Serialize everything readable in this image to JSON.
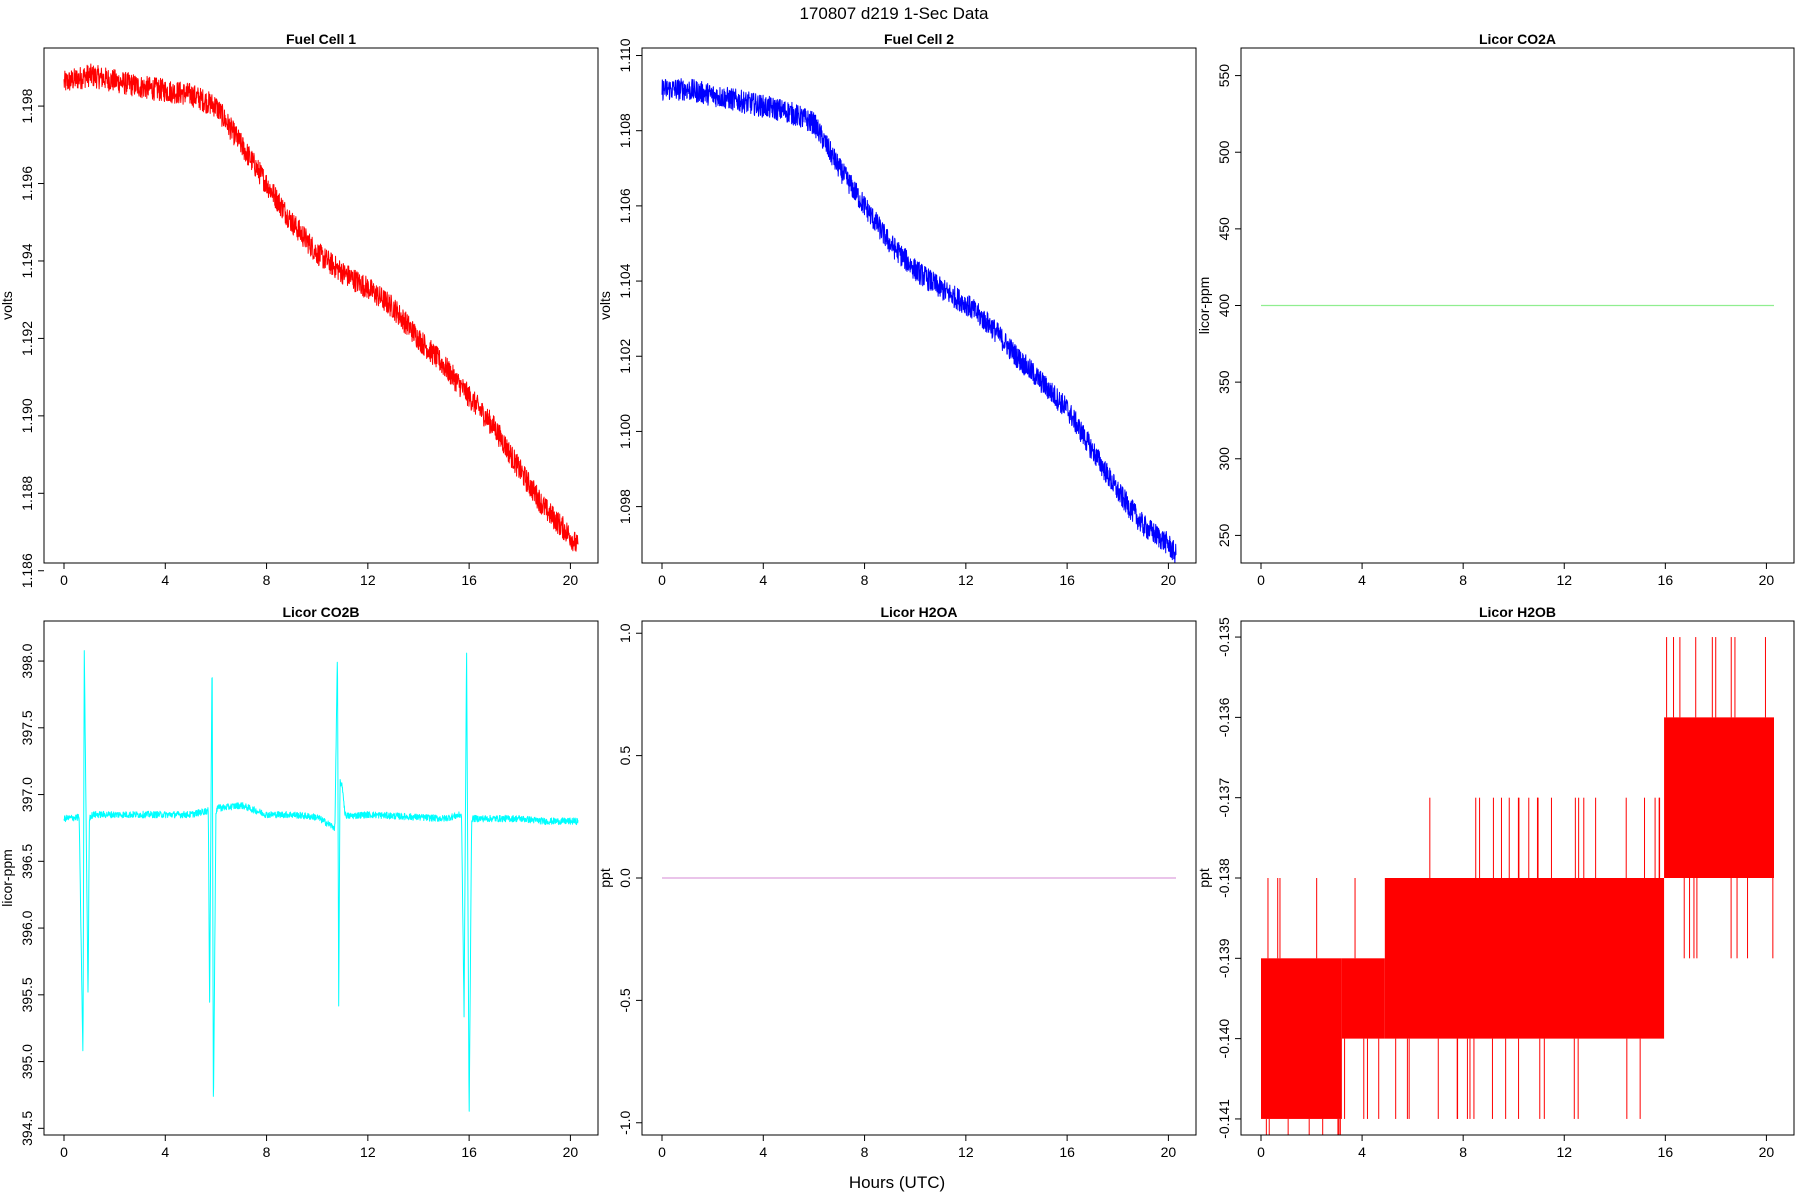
{
  "figure": {
    "title": "170807   d219   1-Sec Data",
    "xlabel": "Hours (UTC)"
  },
  "chart_data": [
    {
      "type": "line",
      "title": "Fuel Cell 1",
      "ylabel": "volts",
      "color": "#ff0000",
      "xlim": [
        0,
        20.3
      ],
      "ylim": [
        1.1862,
        1.1995
      ],
      "xticks": [
        "0",
        "4",
        "8",
        "12",
        "16",
        "20"
      ],
      "yticks": [
        "1.186",
        "1.188",
        "1.190",
        "1.192",
        "1.194",
        "1.196",
        "1.198"
      ],
      "noise": 0.0003,
      "series": [
        {
          "x": [
            0,
            1,
            3,
            5,
            6,
            7,
            8,
            9,
            10,
            11,
            12,
            13,
            14,
            15,
            16,
            17,
            18,
            19,
            20,
            20.3
          ],
          "y": [
            1.1986,
            1.1988,
            1.1985,
            1.1983,
            1.198,
            1.197,
            1.196,
            1.195,
            1.1942,
            1.1937,
            1.1933,
            1.1928,
            1.192,
            1.1913,
            1.1905,
            1.1897,
            1.1886,
            1.1876,
            1.1869,
            1.1866
          ]
        }
      ]
    },
    {
      "type": "line",
      "title": "Fuel Cell 2",
      "ylabel": "volts",
      "color": "#0000ff",
      "xlim": [
        0,
        20.3
      ],
      "ylim": [
        1.0965,
        1.1102
      ],
      "xticks": [
        "0",
        "4",
        "8",
        "12",
        "16",
        "20"
      ],
      "yticks": [
        "1.098",
        "1.100",
        "1.102",
        "1.104",
        "1.106",
        "1.108",
        "1.110"
      ],
      "noise": 0.0003,
      "series": [
        {
          "x": [
            0,
            1,
            3,
            5,
            6,
            7,
            8,
            9,
            10,
            11,
            12,
            13,
            14,
            15,
            16,
            17,
            18,
            19,
            20,
            20.3
          ],
          "y": [
            1.1091,
            1.1091,
            1.1088,
            1.1085,
            1.1082,
            1.107,
            1.106,
            1.105,
            1.1043,
            1.1038,
            1.1034,
            1.1028,
            1.102,
            1.1013,
            1.1006,
            1.0995,
            1.0984,
            1.0975,
            1.097,
            1.0967
          ]
        }
      ]
    },
    {
      "type": "line",
      "title": "Licor CO2A",
      "ylabel": "licor-ppm",
      "color": "#90ee90",
      "xlim": [
        0,
        20.3
      ],
      "ylim": [
        232,
        568
      ],
      "xticks": [
        "0",
        "4",
        "8",
        "12",
        "16",
        "20"
      ],
      "yticks": [
        "250",
        "300",
        "350",
        "400",
        "450",
        "500",
        "550"
      ],
      "noise": 0,
      "series": [
        {
          "x": [
            0,
            20.3
          ],
          "y": [
            400,
            400
          ]
        }
      ]
    },
    {
      "type": "line",
      "title": "Licor CO2B",
      "ylabel": "licor-ppm",
      "color": "#00ffff",
      "xlim": [
        0,
        20.3
      ],
      "ylim": [
        394.45,
        398.3
      ],
      "xticks": [
        "0",
        "4",
        "8",
        "12",
        "16",
        "20"
      ],
      "yticks": [
        "394.5",
        "395.0",
        "395.5",
        "396.0",
        "396.5",
        "397.0",
        "397.5",
        "398.0"
      ],
      "noise": 0.025,
      "series": [
        {
          "x": [
            0,
            0.6,
            0.75,
            0.8,
            0.95,
            1.0,
            1.05,
            1.2,
            3,
            4,
            5,
            5.7,
            5.75,
            5.85,
            5.9,
            6.0,
            6.1,
            6.2,
            7,
            8,
            9,
            10,
            10.7,
            10.8,
            10.85,
            10.9,
            11.0,
            11.1,
            11.2,
            11.3,
            12,
            13,
            14,
            15,
            15.7,
            15.8,
            15.9,
            16.0,
            16.1,
            16.2,
            17,
            18,
            19,
            20,
            20.3
          ],
          "y": [
            396.82,
            396.83,
            395.0,
            398.1,
            395.45,
            396.82,
            396.84,
            396.85,
            396.85,
            396.85,
            396.85,
            396.88,
            395.42,
            398.1,
            394.62,
            396.85,
            396.92,
            396.9,
            396.92,
            396.85,
            396.85,
            396.83,
            396.75,
            398.1,
            395.38,
            397.1,
            397.05,
            396.85,
            396.84,
            396.84,
            396.85,
            396.84,
            396.83,
            396.82,
            396.85,
            395.35,
            398.1,
            394.58,
            396.82,
            396.82,
            396.82,
            396.82,
            396.8,
            396.8,
            396.8
          ]
        }
      ]
    },
    {
      "type": "line",
      "title": "Licor H2OA",
      "ylabel": "ppt",
      "color": "#dda0dd",
      "xlim": [
        0,
        20.3
      ],
      "ylim": [
        -1.05,
        1.05
      ],
      "xticks": [
        "0",
        "4",
        "8",
        "12",
        "16",
        "20"
      ],
      "yticks": [
        "-1.0",
        "-0.5",
        "0.0",
        "0.5",
        "1.0"
      ],
      "noise": 0,
      "series": [
        {
          "x": [
            0,
            20.3
          ],
          "y": [
            0,
            0
          ]
        }
      ]
    },
    {
      "type": "line",
      "title": "Licor H2OB",
      "ylabel": "ppt",
      "color": "#ff0000",
      "xlim": [
        0,
        20.3
      ],
      "ylim": [
        -0.1412,
        -0.1348
      ],
      "xticks": [
        "0",
        "4",
        "8",
        "12",
        "16",
        "20"
      ],
      "yticks": [
        "-0.141",
        "-0.140",
        "-0.139",
        "-0.138",
        "-0.137",
        "-0.136",
        "-0.135"
      ],
      "noise": 0,
      "band_segments": [
        {
          "x0": 0.0,
          "x1": 3.2,
          "lo": -0.141,
          "hi": -0.139
        },
        {
          "x0": 3.2,
          "x1": 4.9,
          "lo": -0.14,
          "hi": -0.139
        },
        {
          "x0": 4.9,
          "x1": 15.95,
          "lo": -0.14,
          "hi": -0.138
        },
        {
          "x0": 15.95,
          "x1": 20.3,
          "lo": -0.138,
          "hi": -0.136
        }
      ],
      "series": [
        {
          "x": [
            0,
            3.2,
            4.9,
            15.95,
            20.3
          ],
          "y": [
            -0.14,
            -0.1395,
            -0.139,
            -0.1385,
            -0.137
          ]
        }
      ]
    }
  ]
}
